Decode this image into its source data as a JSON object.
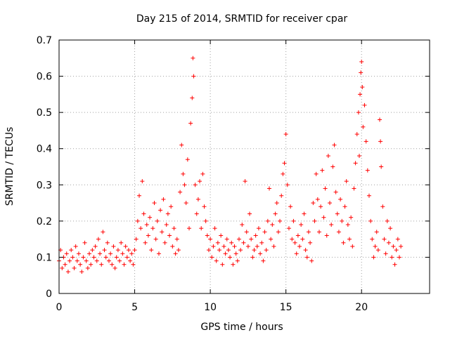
{
  "chart_data": {
    "type": "scatter",
    "title": "Day 215 of 2014, SRMTID for receiver cpar",
    "xlabel": "GPS time / hours",
    "ylabel": "SRMTID / TECUs",
    "xlim": [
      0,
      24.5
    ],
    "ylim": [
      0,
      0.7
    ],
    "x_ticks": [
      0,
      5,
      10,
      15,
      20
    ],
    "x_tick_labels": [
      "0",
      "5",
      "10",
      "15",
      "20"
    ],
    "y_ticks": [
      0,
      0.1,
      0.2,
      0.3,
      0.4,
      0.5,
      0.6,
      0.7
    ],
    "y_tick_labels": [
      "0",
      "0.1",
      "0.2",
      "0.3",
      "0.4",
      "0.5",
      "0.6",
      "0.7"
    ],
    "grid": true,
    "marker": "plus",
    "color": "#ff0000",
    "series": [
      {
        "name": "SRMTID",
        "points": [
          [
            0.0,
            0.09
          ],
          [
            0.1,
            0.12
          ],
          [
            0.2,
            0.07
          ],
          [
            0.3,
            0.1
          ],
          [
            0.4,
            0.08
          ],
          [
            0.5,
            0.11
          ],
          [
            0.6,
            0.06
          ],
          [
            0.7,
            0.09
          ],
          [
            0.8,
            0.12
          ],
          [
            0.9,
            0.1
          ],
          [
            1.0,
            0.07
          ],
          [
            1.1,
            0.13
          ],
          [
            1.2,
            0.09
          ],
          [
            1.3,
            0.11
          ],
          [
            1.4,
            0.08
          ],
          [
            1.5,
            0.06
          ],
          [
            1.6,
            0.1
          ],
          [
            1.7,
            0.14
          ],
          [
            1.8,
            0.09
          ],
          [
            1.9,
            0.07
          ],
          [
            2.0,
            0.11
          ],
          [
            2.1,
            0.08
          ],
          [
            2.2,
            0.12
          ],
          [
            2.3,
            0.1
          ],
          [
            2.4,
            0.13
          ],
          [
            2.5,
            0.09
          ],
          [
            2.6,
            0.15
          ],
          [
            2.7,
            0.11
          ],
          [
            2.8,
            0.08
          ],
          [
            2.9,
            0.17
          ],
          [
            3.0,
            0.12
          ],
          [
            3.1,
            0.1
          ],
          [
            3.2,
            0.14
          ],
          [
            3.3,
            0.09
          ],
          [
            3.4,
            0.11
          ],
          [
            3.5,
            0.08
          ],
          [
            3.6,
            0.13
          ],
          [
            3.7,
            0.07
          ],
          [
            3.8,
            0.1
          ],
          [
            3.9,
            0.12
          ],
          [
            4.0,
            0.09
          ],
          [
            4.1,
            0.14
          ],
          [
            4.2,
            0.11
          ],
          [
            4.3,
            0.08
          ],
          [
            4.4,
            0.13
          ],
          [
            4.5,
            0.1
          ],
          [
            4.6,
            0.12
          ],
          [
            4.7,
            0.09
          ],
          [
            4.8,
            0.11
          ],
          [
            4.9,
            0.08
          ],
          [
            5.0,
            0.12
          ],
          [
            5.1,
            0.15
          ],
          [
            5.2,
            0.2
          ],
          [
            5.3,
            0.27
          ],
          [
            5.4,
            0.18
          ],
          [
            5.5,
            0.31
          ],
          [
            5.6,
            0.22
          ],
          [
            5.7,
            0.14
          ],
          [
            5.8,
            0.19
          ],
          [
            5.9,
            0.16
          ],
          [
            6.0,
            0.21
          ],
          [
            6.1,
            0.12
          ],
          [
            6.2,
            0.18
          ],
          [
            6.3,
            0.25
          ],
          [
            6.4,
            0.15
          ],
          [
            6.5,
            0.2
          ],
          [
            6.6,
            0.11
          ],
          [
            6.7,
            0.23
          ],
          [
            6.8,
            0.17
          ],
          [
            6.9,
            0.26
          ],
          [
            7.0,
            0.14
          ],
          [
            7.1,
            0.19
          ],
          [
            7.2,
            0.22
          ],
          [
            7.3,
            0.16
          ],
          [
            7.4,
            0.24
          ],
          [
            7.5,
            0.13
          ],
          [
            7.6,
            0.18
          ],
          [
            7.7,
            0.11
          ],
          [
            7.8,
            0.15
          ],
          [
            7.9,
            0.12
          ],
          [
            8.0,
            0.28
          ],
          [
            8.1,
            0.41
          ],
          [
            8.2,
            0.33
          ],
          [
            8.3,
            0.3
          ],
          [
            8.4,
            0.25
          ],
          [
            8.5,
            0.37
          ],
          [
            8.6,
            0.18
          ],
          [
            8.7,
            0.47
          ],
          [
            8.8,
            0.54
          ],
          [
            8.85,
            0.65
          ],
          [
            8.9,
            0.6
          ],
          [
            9.0,
            0.3
          ],
          [
            9.1,
            0.22
          ],
          [
            9.2,
            0.26
          ],
          [
            9.3,
            0.31
          ],
          [
            9.4,
            0.18
          ],
          [
            9.5,
            0.33
          ],
          [
            9.6,
            0.24
          ],
          [
            9.7,
            0.2
          ],
          [
            9.8,
            0.16
          ],
          [
            9.9,
            0.12
          ],
          [
            10.0,
            0.15
          ],
          [
            10.1,
            0.1
          ],
          [
            10.2,
            0.13
          ],
          [
            10.3,
            0.18
          ],
          [
            10.4,
            0.09
          ],
          [
            10.5,
            0.14
          ],
          [
            10.6,
            0.12
          ],
          [
            10.7,
            0.16
          ],
          [
            10.8,
            0.08
          ],
          [
            10.9,
            0.13
          ],
          [
            11.0,
            0.11
          ],
          [
            11.1,
            0.15
          ],
          [
            11.2,
            0.12
          ],
          [
            11.3,
            0.1
          ],
          [
            11.4,
            0.14
          ],
          [
            11.5,
            0.08
          ],
          [
            11.6,
            0.13
          ],
          [
            11.7,
            0.11
          ],
          [
            11.8,
            0.09
          ],
          [
            11.9,
            0.15
          ],
          [
            12.0,
            0.12
          ],
          [
            12.1,
            0.19
          ],
          [
            12.2,
            0.14
          ],
          [
            12.3,
            0.31
          ],
          [
            12.4,
            0.17
          ],
          [
            12.5,
            0.13
          ],
          [
            12.6,
            0.22
          ],
          [
            12.7,
            0.15
          ],
          [
            12.8,
            0.1
          ],
          [
            12.9,
            0.12
          ],
          [
            13.0,
            0.16
          ],
          [
            13.1,
            0.13
          ],
          [
            13.2,
            0.18
          ],
          [
            13.3,
            0.11
          ],
          [
            13.4,
            0.14
          ],
          [
            13.5,
            0.09
          ],
          [
            13.6,
            0.17
          ],
          [
            13.7,
            0.12
          ],
          [
            13.8,
            0.2
          ],
          [
            13.9,
            0.29
          ],
          [
            14.0,
            0.15
          ],
          [
            14.1,
            0.19
          ],
          [
            14.2,
            0.13
          ],
          [
            14.3,
            0.22
          ],
          [
            14.4,
            0.25
          ],
          [
            14.5,
            0.17
          ],
          [
            14.6,
            0.2
          ],
          [
            14.7,
            0.27
          ],
          [
            14.8,
            0.33
          ],
          [
            14.9,
            0.36
          ],
          [
            15.0,
            0.44
          ],
          [
            15.1,
            0.3
          ],
          [
            15.2,
            0.18
          ],
          [
            15.3,
            0.24
          ],
          [
            15.4,
            0.15
          ],
          [
            15.5,
            0.2
          ],
          [
            15.6,
            0.14
          ],
          [
            15.7,
            0.11
          ],
          [
            15.8,
            0.16
          ],
          [
            15.9,
            0.13
          ],
          [
            16.0,
            0.19
          ],
          [
            16.1,
            0.15
          ],
          [
            16.2,
            0.22
          ],
          [
            16.3,
            0.12
          ],
          [
            16.4,
            0.1
          ],
          [
            16.5,
            0.17
          ],
          [
            16.6,
            0.14
          ],
          [
            16.7,
            0.09
          ],
          [
            16.8,
            0.25
          ],
          [
            16.9,
            0.2
          ],
          [
            17.0,
            0.33
          ],
          [
            17.1,
            0.26
          ],
          [
            17.2,
            0.17
          ],
          [
            17.3,
            0.24
          ],
          [
            17.4,
            0.34
          ],
          [
            17.5,
            0.21
          ],
          [
            17.6,
            0.29
          ],
          [
            17.7,
            0.16
          ],
          [
            17.8,
            0.38
          ],
          [
            17.9,
            0.25
          ],
          [
            18.0,
            0.19
          ],
          [
            18.1,
            0.35
          ],
          [
            18.2,
            0.41
          ],
          [
            18.3,
            0.28
          ],
          [
            18.4,
            0.22
          ],
          [
            18.5,
            0.17
          ],
          [
            18.6,
            0.26
          ],
          [
            18.7,
            0.2
          ],
          [
            18.8,
            0.14
          ],
          [
            18.9,
            0.24
          ],
          [
            19.0,
            0.31
          ],
          [
            19.1,
            0.19
          ],
          [
            19.2,
            0.15
          ],
          [
            19.3,
            0.21
          ],
          [
            19.4,
            0.13
          ],
          [
            19.5,
            0.29
          ],
          [
            19.6,
            0.36
          ],
          [
            19.7,
            0.44
          ],
          [
            19.8,
            0.5
          ],
          [
            19.85,
            0.38
          ],
          [
            19.9,
            0.55
          ],
          [
            19.95,
            0.61
          ],
          [
            20.0,
            0.64
          ],
          [
            20.05,
            0.57
          ],
          [
            20.1,
            0.46
          ],
          [
            20.2,
            0.52
          ],
          [
            20.3,
            0.42
          ],
          [
            20.4,
            0.34
          ],
          [
            20.5,
            0.27
          ],
          [
            20.6,
            0.2
          ],
          [
            20.7,
            0.15
          ],
          [
            20.8,
            0.1
          ],
          [
            20.9,
            0.13
          ],
          [
            21.0,
            0.17
          ],
          [
            21.1,
            0.12
          ],
          [
            21.2,
            0.48
          ],
          [
            21.25,
            0.42
          ],
          [
            21.3,
            0.35
          ],
          [
            21.4,
            0.24
          ],
          [
            21.5,
            0.15
          ],
          [
            21.6,
            0.11
          ],
          [
            21.7,
            0.2
          ],
          [
            21.8,
            0.14
          ],
          [
            21.9,
            0.18
          ],
          [
            22.0,
            0.1
          ],
          [
            22.1,
            0.13
          ],
          [
            22.2,
            0.08
          ],
          [
            22.3,
            0.12
          ],
          [
            22.4,
            0.15
          ],
          [
            22.5,
            0.1
          ],
          [
            22.6,
            0.13
          ]
        ]
      }
    ]
  }
}
